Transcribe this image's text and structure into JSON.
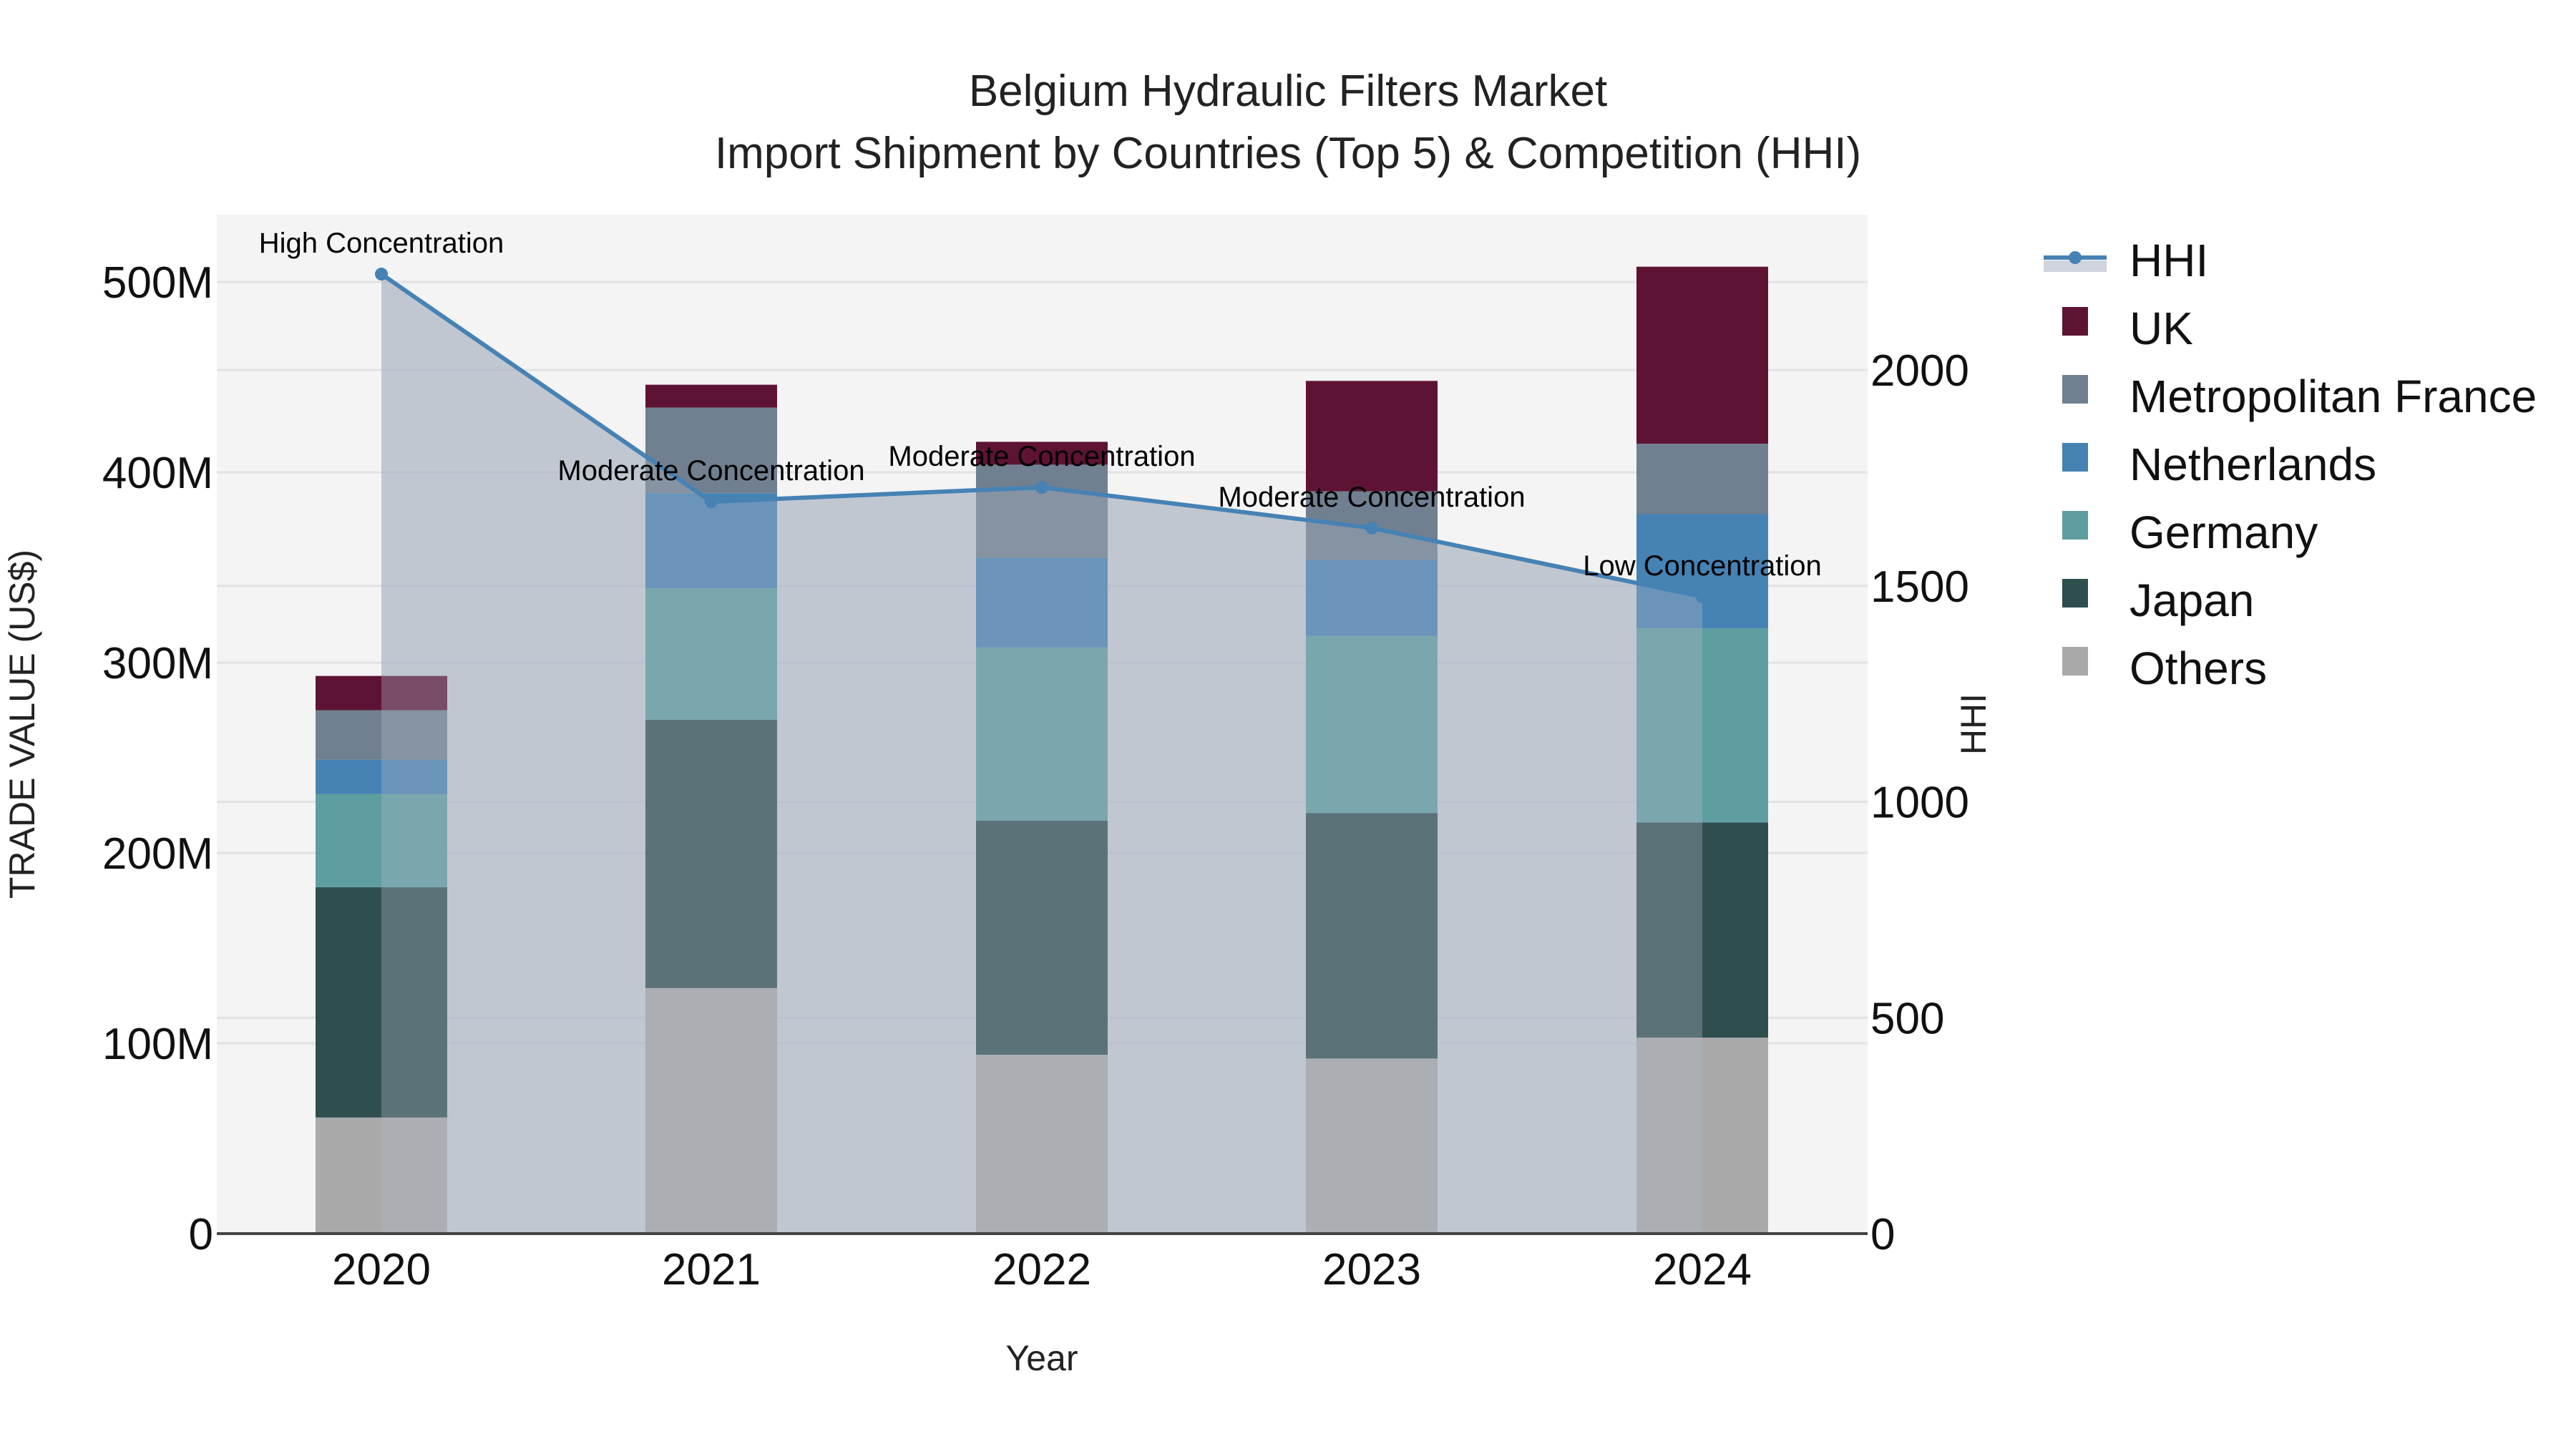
{
  "chart_data": {
    "type": "bar",
    "stacked": true,
    "title": "Belgium Hydraulic Filters Market",
    "subtitle": "Import Shipment by Countries (Top 5) & Competition (HHI)",
    "xlabel": "Year",
    "ylabel": "TRADE VALUE (US$)",
    "y2label": "HHI",
    "categories": [
      "2020",
      "2021",
      "2022",
      "2023",
      "2024"
    ],
    "ylim": [
      0,
      535000000
    ],
    "y2lim": [
      0,
      2360
    ],
    "yticks": [
      0,
      100000000,
      200000000,
      300000000,
      400000000,
      500000000
    ],
    "ytick_labels": [
      "0",
      "100M",
      "200M",
      "300M",
      "400M",
      "500M"
    ],
    "y2ticks": [
      0,
      500,
      1000,
      1500,
      2000
    ],
    "y2tick_labels": [
      "0",
      "500",
      "1000",
      "1500",
      "2000"
    ],
    "grid": true,
    "legend_position": "right",
    "series": [
      {
        "name": "Others",
        "color": "#A9A9A9",
        "values": [
          61000000,
          129000000,
          94000000,
          92000000,
          103000000
        ]
      },
      {
        "name": "Japan",
        "color": "#2F4F4F",
        "values": [
          121000000,
          141000000,
          123000000,
          129000000,
          113000000
        ]
      },
      {
        "name": "Germany",
        "color": "#5F9EA0",
        "values": [
          49000000,
          69000000,
          91000000,
          93000000,
          102000000
        ]
      },
      {
        "name": "Netherlands",
        "color": "#4682B4",
        "values": [
          18000000,
          50000000,
          47000000,
          40000000,
          60000000
        ]
      },
      {
        "name": "Metropolitan France",
        "color": "#708090",
        "values": [
          26000000,
          45000000,
          49000000,
          36000000,
          37000000
        ]
      },
      {
        "name": "UK",
        "color": "#5E1335",
        "values": [
          18000000,
          12000000,
          12000000,
          58000000,
          93000000
        ]
      }
    ],
    "line_series": {
      "name": "HHI",
      "axis": "y2",
      "color": "#4682B4",
      "fill": "rgba(176,186,200,0.6)",
      "values": [
        2222,
        1695,
        1728,
        1634,
        1475
      ],
      "annotations": [
        "High Concentration",
        "Moderate Concentration",
        "Moderate Concentration",
        "Moderate Concentration",
        "Low Concentration"
      ]
    }
  },
  "legend": {
    "items": [
      {
        "label": "HHI",
        "type": "line"
      },
      {
        "label": "UK",
        "color": "#5E1335"
      },
      {
        "label": "Metropolitan France",
        "color": "#708090"
      },
      {
        "label": "Netherlands",
        "color": "#4682B4"
      },
      {
        "label": "Germany",
        "color": "#5F9EA0"
      },
      {
        "label": "Japan",
        "color": "#2F4F4F"
      },
      {
        "label": "Others",
        "color": "#A9A9A9"
      }
    ]
  },
  "colors": {
    "plot_bg": "#F4F4F4",
    "grid": "#E2E2E2",
    "axis_line": "#444444",
    "hhi_line": "#4682B4"
  }
}
